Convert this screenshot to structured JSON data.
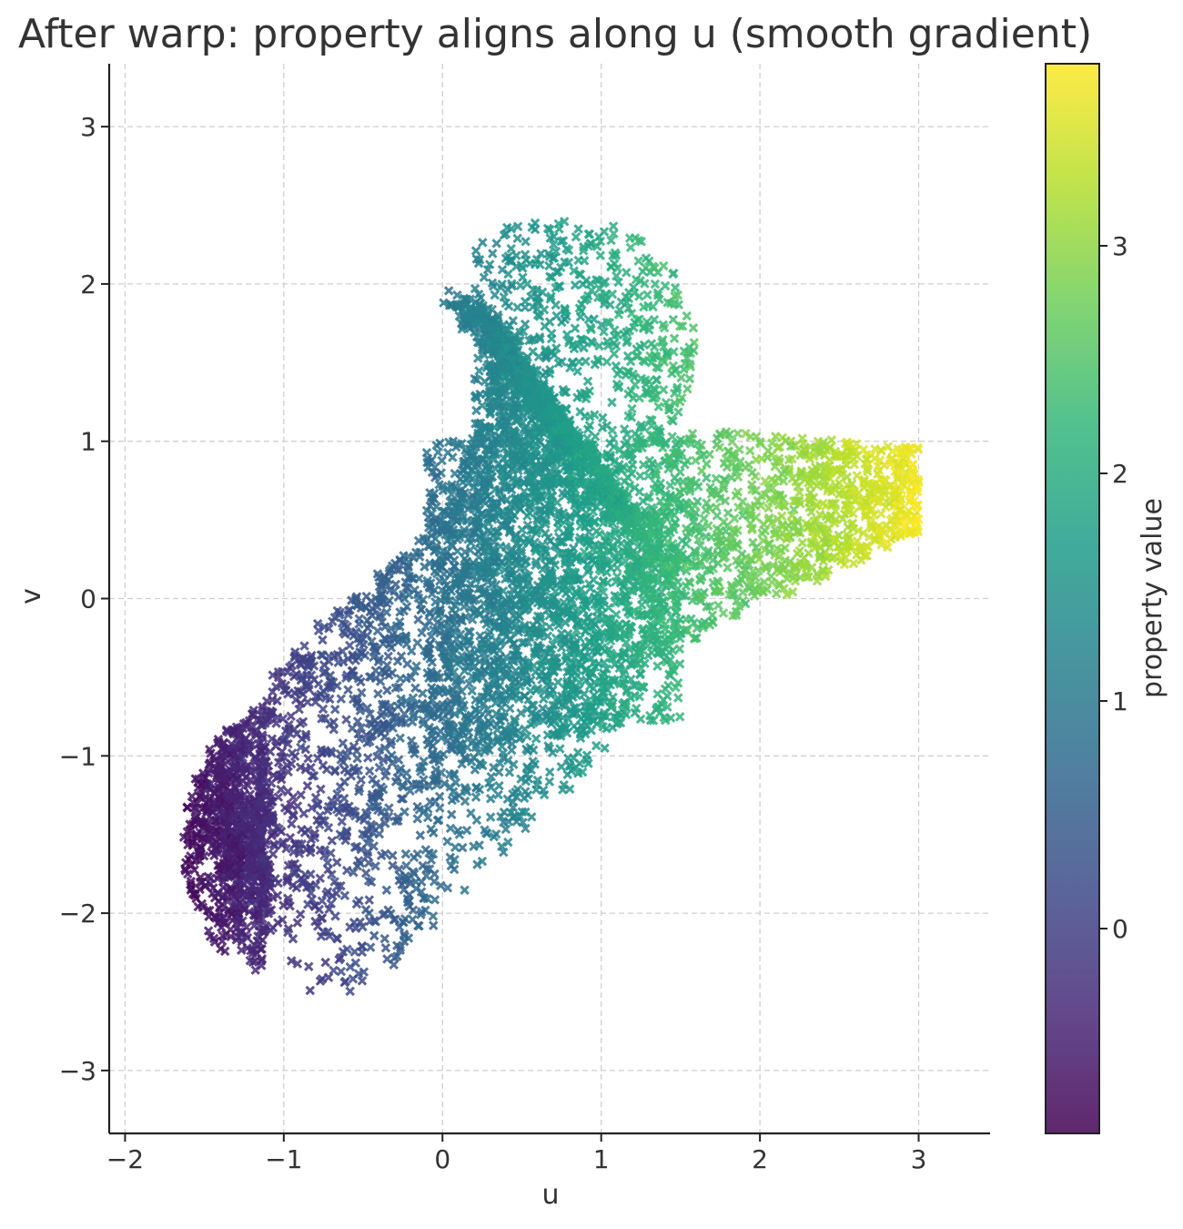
{
  "chart_data": {
    "type": "scatter",
    "title": "After warp: property aligns along u (smooth gradient)",
    "xlabel": "u",
    "ylabel": "v",
    "xlim": [
      -2.1,
      3.45
    ],
    "ylim": [
      -3.4,
      3.4
    ],
    "xticks": [
      -2,
      -1,
      0,
      1,
      2,
      3
    ],
    "xtick_labels": [
      "−2",
      "−1",
      "0",
      "1",
      "2",
      "3"
    ],
    "yticks": [
      -3,
      -2,
      -1,
      0,
      1,
      2,
      3
    ],
    "ytick_labels": [
      "−3",
      "−2",
      "−1",
      "0",
      "1",
      "2",
      "3"
    ],
    "grid": true,
    "marker": "x",
    "colormap": "viridis",
    "colorbar": {
      "label": "property value",
      "range": [
        -0.9,
        3.8
      ],
      "ticks": [
        0,
        1,
        2,
        3
      ],
      "tick_labels": [
        "0",
        "1",
        "2",
        "3"
      ]
    },
    "point_count_estimate": 6000,
    "distribution_description": "Curved band from a dense purple tail near (-1.5, -1.5) through (0, 0.5) up to a teal lobe near (0.5, 2.0), with a green/yellow wing extending right to about (3.0, 0.7); color increases with u.",
    "point_samples": [
      {
        "u": -1.6,
        "v": -1.5,
        "value": -0.8
      },
      {
        "u": -1.4,
        "v": -2.0,
        "value": -0.6
      },
      {
        "u": -1.2,
        "v": -0.6,
        "value": -0.3
      },
      {
        "u": -0.7,
        "v": -2.4,
        "value": -0.1
      },
      {
        "u": -0.5,
        "v": 0.1,
        "value": 0.4
      },
      {
        "u": 0.0,
        "v": 0.6,
        "value": 0.9
      },
      {
        "u": 0.2,
        "v": 1.9,
        "value": 1.2
      },
      {
        "u": 0.5,
        "v": 2.3,
        "value": 1.5
      },
      {
        "u": 0.7,
        "v": -1.0,
        "value": 1.4
      },
      {
        "u": 1.1,
        "v": -0.8,
        "value": 1.9
      },
      {
        "u": 1.4,
        "v": 0.2,
        "value": 2.3
      },
      {
        "u": 1.9,
        "v": 1.0,
        "value": 2.7
      },
      {
        "u": 2.2,
        "v": 0.3,
        "value": 3.1
      },
      {
        "u": 2.6,
        "v": 0.5,
        "value": 3.4
      },
      {
        "u": 2.95,
        "v": 0.7,
        "value": 3.7
      }
    ],
    "colors": {
      "viridis_stops": [
        "#440154",
        "#482878",
        "#3e4989",
        "#31688e",
        "#26828e",
        "#1f9e89",
        "#35b779",
        "#6ece58",
        "#b5de2b",
        "#fde725"
      ]
    }
  }
}
